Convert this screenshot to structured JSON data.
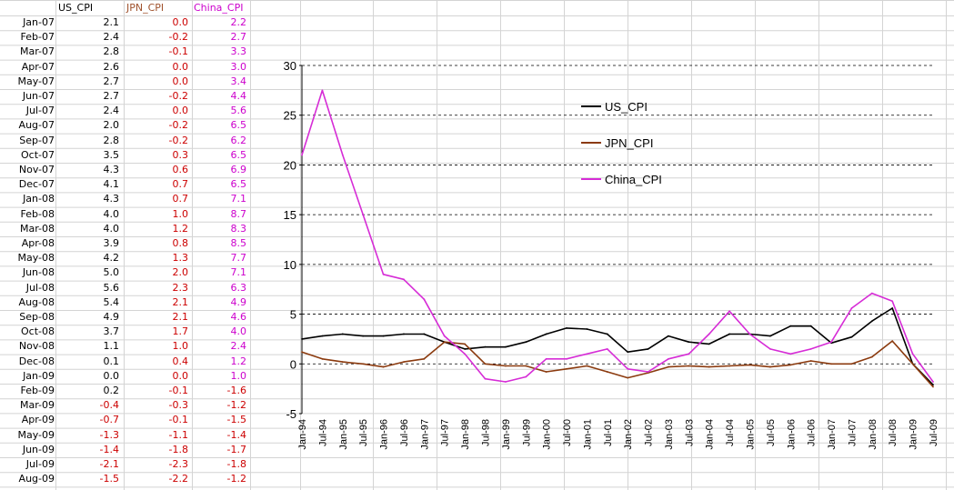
{
  "headers": {
    "us": "US_CPI",
    "jpn": "JPN_CPI",
    "china": "China_CPI"
  },
  "colors": {
    "us": "#000000",
    "jpn": "#8b3a0e",
    "china": "#d62cd6",
    "neg": "#cc0000",
    "grid": "#d4d4d4"
  },
  "rows": [
    {
      "date": "Jan-07",
      "us": "2.1",
      "jpn": "0.0",
      "china": "2.2"
    },
    {
      "date": "Feb-07",
      "us": "2.4",
      "jpn": "-0.2",
      "china": "2.7"
    },
    {
      "date": "Mar-07",
      "us": "2.8",
      "jpn": "-0.1",
      "china": "3.3"
    },
    {
      "date": "Apr-07",
      "us": "2.6",
      "jpn": "0.0",
      "china": "3.0"
    },
    {
      "date": "May-07",
      "us": "2.7",
      "jpn": "0.0",
      "china": "3.4"
    },
    {
      "date": "Jun-07",
      "us": "2.7",
      "jpn": "-0.2",
      "china": "4.4"
    },
    {
      "date": "Jul-07",
      "us": "2.4",
      "jpn": "0.0",
      "china": "5.6"
    },
    {
      "date": "Aug-07",
      "us": "2.0",
      "jpn": "-0.2",
      "china": "6.5"
    },
    {
      "date": "Sep-07",
      "us": "2.8",
      "jpn": "-0.2",
      "china": "6.2"
    },
    {
      "date": "Oct-07",
      "us": "3.5",
      "jpn": "0.3",
      "china": "6.5"
    },
    {
      "date": "Nov-07",
      "us": "4.3",
      "jpn": "0.6",
      "china": "6.9"
    },
    {
      "date": "Dec-07",
      "us": "4.1",
      "jpn": "0.7",
      "china": "6.5"
    },
    {
      "date": "Jan-08",
      "us": "4.3",
      "jpn": "0.7",
      "china": "7.1"
    },
    {
      "date": "Feb-08",
      "us": "4.0",
      "jpn": "1.0",
      "china": "8.7"
    },
    {
      "date": "Mar-08",
      "us": "4.0",
      "jpn": "1.2",
      "china": "8.3"
    },
    {
      "date": "Apr-08",
      "us": "3.9",
      "jpn": "0.8",
      "china": "8.5"
    },
    {
      "date": "May-08",
      "us": "4.2",
      "jpn": "1.3",
      "china": "7.7"
    },
    {
      "date": "Jun-08",
      "us": "5.0",
      "jpn": "2.0",
      "china": "7.1"
    },
    {
      "date": "Jul-08",
      "us": "5.6",
      "jpn": "2.3",
      "china": "6.3"
    },
    {
      "date": "Aug-08",
      "us": "5.4",
      "jpn": "2.1",
      "china": "4.9"
    },
    {
      "date": "Sep-08",
      "us": "4.9",
      "jpn": "2.1",
      "china": "4.6"
    },
    {
      "date": "Oct-08",
      "us": "3.7",
      "jpn": "1.7",
      "china": "4.0"
    },
    {
      "date": "Nov-08",
      "us": "1.1",
      "jpn": "1.0",
      "china": "2.4"
    },
    {
      "date": "Dec-08",
      "us": "0.1",
      "jpn": "0.4",
      "china": "1.2"
    },
    {
      "date": "Jan-09",
      "us": "0.0",
      "jpn": "0.0",
      "china": "1.0"
    },
    {
      "date": "Feb-09",
      "us": "0.2",
      "jpn": "-0.1",
      "china": "-1.6"
    },
    {
      "date": "Mar-09",
      "us": "-0.4",
      "jpn": "-0.3",
      "china": "-1.2"
    },
    {
      "date": "Apr-09",
      "us": "-0.7",
      "jpn": "-0.1",
      "china": "-1.5"
    },
    {
      "date": "May-09",
      "us": "-1.3",
      "jpn": "-1.1",
      "china": "-1.4"
    },
    {
      "date": "Jun-09",
      "us": "-1.4",
      "jpn": "-1.8",
      "china": "-1.7"
    },
    {
      "date": "Jul-09",
      "us": "-2.1",
      "jpn": "-2.3",
      "china": "-1.8"
    },
    {
      "date": "Aug-09",
      "us": "-1.5",
      "jpn": "-2.2",
      "china": "-1.2"
    }
  ],
  "chart_data": {
    "type": "line",
    "ylim": [
      -5,
      30
    ],
    "yticks": [
      -5,
      0,
      5,
      10,
      15,
      20,
      25,
      30
    ],
    "grid": "horizontal dashed",
    "legend_position": "upper-middle",
    "xticks": [
      "Jan-94",
      "Jul-94",
      "Jan-95",
      "Jul-95",
      "Jan-96",
      "Jul-96",
      "Jan-97",
      "Jul-97",
      "Jan-98",
      "Jul-98",
      "Jan-99",
      "Jul-99",
      "Jan-00",
      "Jul-00",
      "Jan-01",
      "Jul-01",
      "Jan-02",
      "Jul-02",
      "Jan-03",
      "Jul-03",
      "Jan-04",
      "Jul-04",
      "Jan-05",
      "Jul-05",
      "Jan-06",
      "Jul-06",
      "Jan-07",
      "Jul-07",
      "Jan-08",
      "Jul-08",
      "Jan-09",
      "Jul-09"
    ],
    "x": [
      "Jan-94",
      "Jul-94",
      "Jan-95",
      "Jul-95",
      "Jan-96",
      "Jul-96",
      "Jan-97",
      "Jul-97",
      "Jan-98",
      "Jul-98",
      "Jan-99",
      "Jul-99",
      "Jan-00",
      "Jul-00",
      "Jan-01",
      "Jul-01",
      "Jan-02",
      "Jul-02",
      "Jan-03",
      "Jul-03",
      "Jan-04",
      "Jul-04",
      "Jan-05",
      "Jul-05",
      "Jan-06",
      "Jul-06",
      "Jan-07",
      "Jul-07",
      "Jan-08",
      "Jul-08",
      "Jan-09",
      "Jul-09"
    ],
    "series": [
      {
        "name": "US_CPI",
        "color": "#000000",
        "values": [
          2.5,
          2.8,
          3.0,
          2.8,
          2.8,
          3.0,
          3.0,
          2.2,
          1.5,
          1.7,
          1.7,
          2.2,
          3.0,
          3.6,
          3.5,
          3.0,
          1.2,
          1.5,
          2.8,
          2.2,
          2.0,
          3.0,
          3.0,
          2.8,
          3.8,
          3.8,
          2.1,
          2.7,
          4.3,
          5.6,
          0.0,
          -2.1
        ]
      },
      {
        "name": "JPN_CPI",
        "color": "#8b3a0e",
        "values": [
          1.2,
          0.5,
          0.2,
          0.0,
          -0.3,
          0.2,
          0.5,
          2.2,
          2.0,
          0.0,
          -0.2,
          -0.2,
          -0.8,
          -0.5,
          -0.2,
          -0.8,
          -1.4,
          -0.9,
          -0.3,
          -0.2,
          -0.3,
          -0.2,
          -0.1,
          -0.3,
          -0.1,
          0.3,
          0.0,
          0.0,
          0.7,
          2.3,
          0.0,
          -2.3
        ]
      },
      {
        "name": "China_CPI",
        "color": "#d62cd6",
        "values": [
          21.0,
          27.5,
          21.0,
          15.0,
          9.0,
          8.5,
          6.5,
          2.8,
          1.0,
          -1.5,
          -1.8,
          -1.3,
          0.5,
          0.5,
          1.0,
          1.5,
          -0.5,
          -0.8,
          0.5,
          1.0,
          3.0,
          5.3,
          3.0,
          1.5,
          1.0,
          1.5,
          2.2,
          5.6,
          7.1,
          6.3,
          1.0,
          -1.8
        ]
      }
    ]
  }
}
